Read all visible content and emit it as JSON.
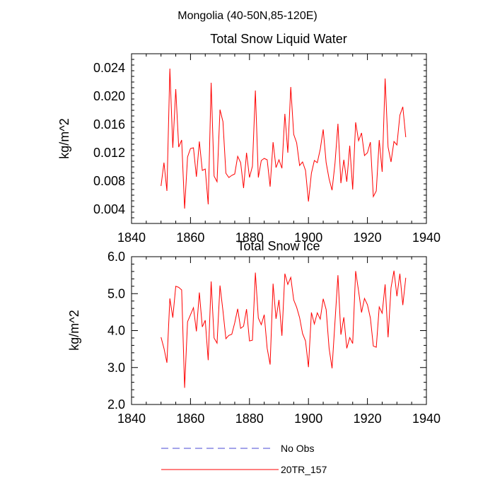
{
  "figure_title": "Mongolia (40-50N,85-120E)",
  "colors": {
    "model": "#ff0000",
    "obs": "#4a4ad6",
    "axis": "#000000"
  },
  "legend": {
    "items": [
      {
        "label": "No Obs",
        "style": "dashed",
        "color": "#4a4ad6"
      },
      {
        "label": "20TR_157",
        "style": "solid",
        "color": "#ff0000"
      }
    ]
  },
  "chart_data": [
    {
      "type": "line",
      "title": "Total Snow Liquid Water",
      "xlabel": "",
      "ylabel": "kg/m^2",
      "xlim": [
        1840,
        1940
      ],
      "ylim": [
        0.002,
        0.026
      ],
      "xticks": [
        1840,
        1860,
        1880,
        1900,
        1920,
        1940
      ],
      "xtick_labels": [
        "1840",
        "1860",
        "1880",
        "1900",
        "1920",
        "1940"
      ],
      "yticks": [
        0.004,
        0.008,
        0.012,
        0.016,
        0.02,
        0.024
      ],
      "ytick_labels": [
        "0.004",
        "0.008",
        "0.012",
        "0.016",
        "0.020",
        "0.024"
      ],
      "series": [
        {
          "name": "20TR_157",
          "x": [
            1850,
            1851,
            1852,
            1853,
            1854,
            1855,
            1856,
            1857,
            1858,
            1859,
            1860,
            1861,
            1862,
            1863,
            1864,
            1865,
            1866,
            1867,
            1868,
            1869,
            1870,
            1871,
            1872,
            1873,
            1874,
            1875,
            1876,
            1877,
            1878,
            1879,
            1880,
            1881,
            1882,
            1883,
            1884,
            1885,
            1886,
            1887,
            1888,
            1889,
            1890,
            1891,
            1892,
            1893,
            1894,
            1895,
            1896,
            1897,
            1898,
            1899,
            1900,
            1901,
            1902,
            1903,
            1904,
            1905,
            1906,
            1907,
            1908,
            1909,
            1910,
            1911,
            1912,
            1913,
            1914,
            1915,
            1916,
            1917,
            1918,
            1919,
            1920,
            1921,
            1922,
            1923,
            1924,
            1925,
            1926,
            1927,
            1928,
            1929,
            1930,
            1931,
            1932,
            1933
          ],
          "values": [
            0.0073,
            0.0106,
            0.0066,
            0.0239,
            0.0127,
            0.021,
            0.0128,
            0.0138,
            0.0041,
            0.0114,
            0.0126,
            0.0127,
            0.0086,
            0.0136,
            0.0095,
            0.0097,
            0.0047,
            0.0219,
            0.0087,
            0.0079,
            0.0181,
            0.0164,
            0.0091,
            0.0085,
            0.0088,
            0.009,
            0.0115,
            0.0106,
            0.007,
            0.012,
            0.0085,
            0.0101,
            0.0208,
            0.0085,
            0.0109,
            0.0112,
            0.011,
            0.0072,
            0.0135,
            0.0099,
            0.011,
            0.0098,
            0.0175,
            0.012,
            0.0213,
            0.0146,
            0.0134,
            0.0102,
            0.0107,
            0.0095,
            0.0051,
            0.0091,
            0.0109,
            0.0106,
            0.0125,
            0.0153,
            0.0106,
            0.0083,
            0.0067,
            0.0105,
            0.0161,
            0.0077,
            0.011,
            0.0079,
            0.013,
            0.0068,
            0.0163,
            0.0137,
            0.0148,
            0.0116,
            0.012,
            0.0135,
            0.0058,
            0.0066,
            0.0138,
            0.0093,
            0.0225,
            0.0128,
            0.0107,
            0.0136,
            0.0131,
            0.0173,
            0.0185,
            0.0142
          ]
        }
      ]
    },
    {
      "type": "line",
      "title": "Total Snow Ice",
      "xlabel": "",
      "ylabel": "kg/m^2",
      "xlim": [
        1840,
        1940
      ],
      "ylim": [
        2.0,
        6.0
      ],
      "xticks": [
        1840,
        1860,
        1880,
        1900,
        1920,
        1940
      ],
      "xtick_labels": [
        "1840",
        "1860",
        "1880",
        "1900",
        "1920",
        "1940"
      ],
      "yticks": [
        2.0,
        3.0,
        4.0,
        5.0,
        6.0
      ],
      "ytick_labels": [
        "2.0",
        "3.0",
        "4.0",
        "5.0",
        "6.0"
      ],
      "series": [
        {
          "name": "20TR_157",
          "x": [
            1850,
            1851,
            1852,
            1853,
            1854,
            1855,
            1856,
            1857,
            1858,
            1859,
            1860,
            1861,
            1862,
            1863,
            1864,
            1865,
            1866,
            1867,
            1868,
            1869,
            1870,
            1871,
            1872,
            1873,
            1874,
            1875,
            1876,
            1877,
            1878,
            1879,
            1880,
            1881,
            1882,
            1883,
            1884,
            1885,
            1886,
            1887,
            1888,
            1889,
            1890,
            1891,
            1892,
            1893,
            1894,
            1895,
            1896,
            1897,
            1898,
            1899,
            1900,
            1901,
            1902,
            1903,
            1904,
            1905,
            1906,
            1907,
            1908,
            1909,
            1910,
            1911,
            1912,
            1913,
            1914,
            1915,
            1916,
            1917,
            1918,
            1919,
            1920,
            1921,
            1922,
            1923,
            1924,
            1925,
            1926,
            1927,
            1928,
            1929,
            1930,
            1931,
            1932,
            1933
          ],
          "values": [
            3.82,
            3.52,
            3.13,
            4.87,
            4.35,
            5.2,
            5.17,
            5.1,
            2.45,
            4.24,
            4.43,
            4.62,
            3.98,
            5.03,
            4.1,
            4.28,
            3.2,
            5.33,
            3.8,
            3.66,
            5.22,
            4.54,
            3.78,
            3.87,
            3.9,
            4.21,
            4.59,
            4.06,
            4.12,
            4.58,
            3.72,
            3.74,
            5.57,
            4.34,
            4.16,
            4.43,
            3.52,
            3.08,
            5.27,
            4.32,
            4.83,
            3.86,
            5.54,
            5.25,
            5.44,
            4.83,
            4.63,
            4.35,
            3.92,
            3.72,
            3.01,
            4.49,
            4.18,
            4.48,
            4.31,
            4.86,
            4.57,
            3.52,
            2.98,
            4.24,
            5.5,
            3.89,
            4.36,
            3.52,
            3.81,
            3.65,
            5.61,
            5.07,
            4.49,
            4.87,
            4.7,
            4.34,
            3.58,
            3.55,
            4.64,
            4.47,
            5.25,
            3.82,
            5.16,
            5.62,
            4.93,
            5.54,
            4.69,
            5.43
          ]
        }
      ]
    }
  ]
}
